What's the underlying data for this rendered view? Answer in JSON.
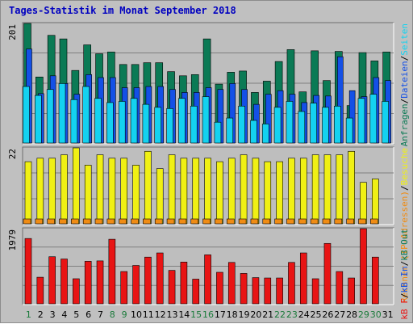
{
  "title": "Tages-Statistik im Monat September 2018",
  "colors": {
    "background": "#c0c0c0",
    "panel": "#bebebe",
    "grid": "#808080",
    "hits": "#0b7a55",
    "files": "#1450e6",
    "pages": "#14d2f0",
    "visits": "#f0f014",
    "sites": "#f08c14",
    "kbytes": "#e81414",
    "weekday_label": "#000000",
    "weekend_label": "#1a7a3a"
  },
  "chart_data": [
    {
      "type": "bar",
      "ymax_label": "201",
      "legend": [
        "Anfragen",
        "Dateien",
        "Seiten"
      ],
      "series": [
        {
          "name": "Anfragen",
          "color": "#0b7a55",
          "values": [
            201,
            111,
            181,
            175,
            122,
            165,
            150,
            153,
            132,
            132,
            135,
            135,
            120,
            113,
            115,
            175,
            99,
            119,
            121,
            85,
            104,
            137,
            157,
            86,
            155,
            105,
            154,
            63,
            152,
            138,
            153
          ]
        },
        {
          "name": "Dateien",
          "color": "#1450e6",
          "values": [
            158,
            83,
            113,
            100,
            82,
            115,
            110,
            110,
            93,
            93,
            95,
            95,
            90,
            85,
            85,
            93,
            90,
            100,
            90,
            65,
            82,
            88,
            82,
            68,
            80,
            79,
            145,
            88,
            78,
            110,
            105
          ]
        },
        {
          "name": "Seiten",
          "color": "#14d2f0",
          "values": [
            95,
            80,
            90,
            100,
            73,
            95,
            75,
            68,
            70,
            75,
            65,
            60,
            58,
            75,
            62,
            78,
            35,
            42,
            62,
            38,
            32,
            60,
            70,
            53,
            67,
            60,
            62,
            42,
            75,
            82,
            70
          ]
        }
      ],
      "ylim": [
        0,
        201
      ]
    },
    {
      "type": "bar",
      "ymax_label": "22",
      "legend": [
        "Rechner (IP-Adressen)",
        "Besuche"
      ],
      "series": [
        {
          "name": "Besuche",
          "color": "#f0f014",
          "values": [
            18,
            19,
            19,
            20,
            22,
            17,
            20,
            19,
            19,
            17,
            21,
            16,
            20,
            19,
            19,
            19,
            18,
            19,
            20,
            19,
            18,
            18,
            19,
            19,
            20,
            20,
            20,
            21,
            12,
            13,
            0
          ]
        },
        {
          "name": "Rechner (IP-Adressen)",
          "color": "#f08c14",
          "values": [
            1,
            1,
            1,
            1,
            1,
            1,
            1,
            1,
            1,
            1,
            1,
            1,
            1,
            1,
            1,
            1,
            1,
            1,
            1,
            1,
            1,
            1,
            1,
            1,
            1,
            1,
            1,
            1,
            1,
            1,
            0
          ]
        }
      ],
      "ylim": [
        0,
        22
      ]
    },
    {
      "type": "bar",
      "ymax_label": "1979",
      "legend": [
        "kB F",
        "kB In",
        "kB Out"
      ],
      "series": [
        {
          "name": "kB F",
          "color": "#e81414",
          "values": [
            1720,
            700,
            1240,
            1180,
            660,
            1120,
            1130,
            1700,
            850,
            1010,
            1230,
            1340,
            880,
            1100,
            650,
            1290,
            830,
            1090,
            800,
            690,
            680,
            680,
            1090,
            1340,
            660,
            1590,
            850,
            680,
            1979,
            1230,
            0
          ]
        }
      ],
      "ylim": [
        0,
        1979
      ]
    }
  ],
  "legend_right": {
    "panel1": [
      "Anfragen",
      "/",
      "Dateien",
      "/",
      "Seiten"
    ],
    "panel2": [
      "Rechner (IP-Adressen)",
      "/",
      "Besuche"
    ],
    "panel3": [
      "kB F",
      "/",
      "kB In",
      "/",
      "kB Out"
    ]
  },
  "days": [
    "1",
    "2",
    "3",
    "4",
    "5",
    "6",
    "7",
    "8",
    "9",
    "10",
    "11",
    "12",
    "13",
    "14",
    "15",
    "16",
    "17",
    "18",
    "19",
    "20",
    "21",
    "22",
    "23",
    "24",
    "25",
    "26",
    "27",
    "28",
    "29",
    "30",
    "31"
  ],
  "weekend_days": [
    1,
    8,
    9,
    15,
    16,
    22,
    23,
    29,
    30
  ]
}
